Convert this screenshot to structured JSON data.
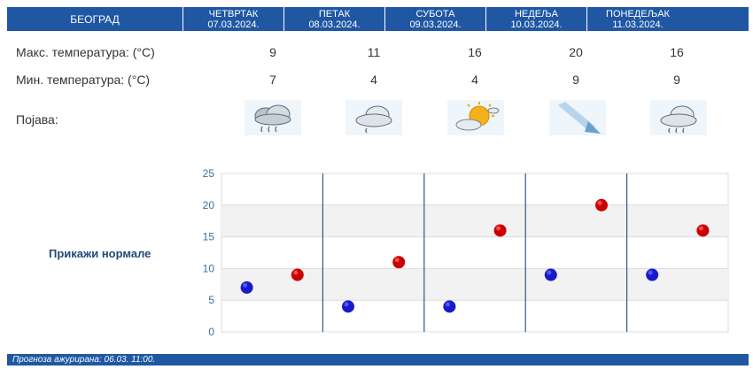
{
  "header": {
    "city": "БЕОГРАД",
    "days": [
      {
        "name": "ЧЕТВРТАК",
        "date": "07.03.2024."
      },
      {
        "name": "ПЕТАК",
        "date": "08.03.2024."
      },
      {
        "name": "СУБОТА",
        "date": "09.03.2024."
      },
      {
        "name": "НЕДЕЉА",
        "date": "10.03.2024."
      },
      {
        "name": "ПОНЕДЕЉАК",
        "date": "11.03.2024."
      }
    ]
  },
  "rows": {
    "max_label": "Макс. температура: (°C)",
    "min_label": "Мин. температура: (°C)",
    "phenomenon_label": "Појава:"
  },
  "max_temps": [
    "9",
    "11",
    "16",
    "20",
    "16"
  ],
  "min_temps": [
    "7",
    "4",
    "4",
    "9",
    "9"
  ],
  "phenomena_icons": [
    "rain-cloud-icon",
    "cloud-icon",
    "sun-behind-cloud-icon",
    "wind-icon",
    "rain-cloud-icon"
  ],
  "show_normals_label": "Прикажи нормале",
  "footer_text": "Прогноза ажурирана:  06.03.  11:00.",
  "colors": {
    "header_bg": "#1f57a3",
    "max_dot": "#cc0000",
    "min_dot": "#1a1acc"
  },
  "chart_data": {
    "type": "scatter",
    "categories": [
      "07.03.2024.",
      "08.03.2024.",
      "09.03.2024.",
      "10.03.2024.",
      "11.03.2024."
    ],
    "series": [
      {
        "values": [
          7,
          4,
          4,
          9,
          9
        ]
      },
      {
        "values": [
          9,
          11,
          16,
          20,
          16
        ]
      }
    ],
    "yticks": [
      0,
      5,
      10,
      15,
      20,
      25
    ],
    "ylim": [
      0,
      25
    ],
    "grid": true
  }
}
